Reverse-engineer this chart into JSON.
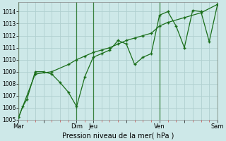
{
  "xlabel": "Pression niveau de la mer( hPa )",
  "background_color": "#cde8e8",
  "grid_color": "#b0d0d0",
  "line_color": "#1a6e1a",
  "ylim": [
    1005,
    1014.8
  ],
  "yticks": [
    1005,
    1006,
    1007,
    1008,
    1009,
    1010,
    1011,
    1012,
    1013,
    1014
  ],
  "xtick_labels": [
    "Mar",
    "",
    "Dim",
    "Jeu",
    "",
    "Ven",
    "",
    "Sam"
  ],
  "xtick_positions": [
    0,
    3,
    7,
    9,
    13,
    17,
    20,
    24
  ],
  "vline_positions": [
    0,
    7,
    9,
    17,
    24
  ],
  "series1_x": [
    0,
    0.5,
    1,
    2,
    3,
    4,
    5,
    6,
    7,
    8,
    9,
    10,
    11,
    12,
    13,
    14,
    15,
    16,
    17,
    18,
    19,
    20,
    21,
    22,
    23,
    24
  ],
  "series1_y": [
    1005.2,
    1006.1,
    1006.7,
    1009.0,
    1009.0,
    1008.8,
    1008.1,
    1007.3,
    1006.1,
    1008.6,
    1010.2,
    1010.5,
    1010.8,
    1011.6,
    1011.3,
    1009.6,
    1010.2,
    1010.5,
    1013.7,
    1014.0,
    1012.8,
    1011.0,
    1014.1,
    1014.0,
    1011.5,
    1014.6
  ],
  "series2_x": [
    0,
    2,
    4,
    6,
    7,
    8,
    9,
    10,
    11,
    12,
    13,
    14,
    15,
    16,
    17,
    18,
    20,
    22,
    24
  ],
  "series2_y": [
    1005.2,
    1008.8,
    1009.0,
    1009.6,
    1010.0,
    1010.3,
    1010.6,
    1010.8,
    1011.0,
    1011.3,
    1011.6,
    1011.8,
    1012.0,
    1012.2,
    1012.8,
    1013.1,
    1013.5,
    1013.9,
    1014.6
  ],
  "figsize": [
    3.2,
    2.0
  ],
  "dpi": 100
}
